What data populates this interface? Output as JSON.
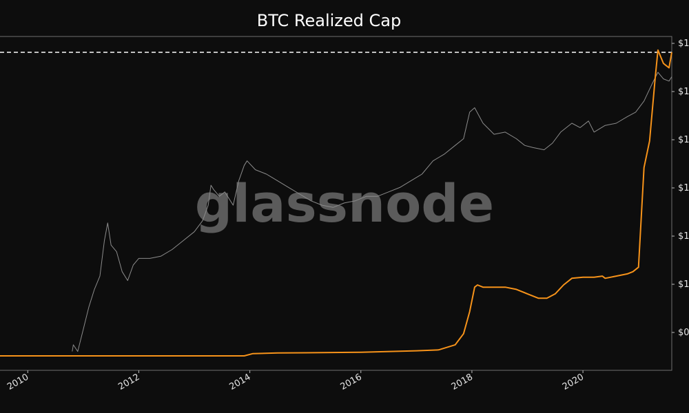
{
  "chart_data": {
    "type": "line",
    "title": "BTC Realized Cap",
    "watermark": "glassnode",
    "x_ticks": [
      "2010",
      "2012",
      "2014",
      "2016",
      "2018",
      "2020"
    ],
    "y_ticks": [
      "$1",
      "$1",
      "$1",
      "$1",
      "$1",
      "$1",
      "$0"
    ],
    "xlim": [
      2009.5,
      2021.6
    ],
    "grid": false,
    "reference_line": {
      "style": "dashed",
      "color": "#ffffff"
    },
    "series": [
      {
        "key": "price",
        "color": "#8c8c8c",
        "x": [
          2010.8,
          2010.82,
          2010.9,
          2011.0,
          2011.1,
          2011.2,
          2011.3,
          2011.38,
          2011.44,
          2011.5,
          2011.6,
          2011.7,
          2011.8,
          2011.9,
          2012.0,
          2012.2,
          2012.4,
          2012.6,
          2012.8,
          2013.0,
          2013.15,
          2013.25,
          2013.3,
          2013.35,
          2013.45,
          2013.55,
          2013.7,
          2013.8,
          2013.9,
          2013.95,
          2014.1,
          2014.3,
          2014.5,
          2014.7,
          2014.9,
          2015.1,
          2015.3,
          2015.5,
          2015.7,
          2015.9,
          2016.1,
          2016.3,
          2016.5,
          2016.7,
          2016.9,
          2017.1,
          2017.3,
          2017.5,
          2017.7,
          2017.85,
          2017.96,
          2018.05,
          2018.2,
          2018.4,
          2018.6,
          2018.8,
          2018.95,
          2019.1,
          2019.3,
          2019.45,
          2019.6,
          2019.8,
          2019.95,
          2020.1,
          2020.2,
          2020.4,
          2020.6,
          2020.8,
          2020.95,
          2021.1,
          2021.25,
          2021.35,
          2021.45,
          2021.55,
          2021.6
        ],
        "y": [
          0.02,
          0.05,
          0.02,
          0.12,
          0.22,
          0.3,
          0.36,
          0.52,
          0.6,
          0.5,
          0.47,
          0.38,
          0.34,
          0.41,
          0.44,
          0.44,
          0.45,
          0.48,
          0.52,
          0.56,
          0.61,
          0.68,
          0.77,
          0.75,
          0.72,
          0.74,
          0.68,
          0.79,
          0.86,
          0.88,
          0.84,
          0.82,
          0.79,
          0.76,
          0.73,
          0.7,
          0.68,
          0.67,
          0.69,
          0.7,
          0.72,
          0.72,
          0.74,
          0.76,
          0.79,
          0.82,
          0.88,
          0.91,
          0.95,
          0.98,
          1.1,
          1.12,
          1.05,
          1.0,
          1.01,
          0.98,
          0.95,
          0.94,
          0.93,
          0.96,
          1.01,
          1.05,
          1.03,
          1.06,
          1.01,
          1.04,
          1.05,
          1.08,
          1.1,
          1.15,
          1.23,
          1.28,
          1.25,
          1.24,
          1.26
        ]
      },
      {
        "key": "realized_cap",
        "color": "#f7931a",
        "x": [
          2009.5,
          2010.5,
          2011.0,
          2012.0,
          2013.0,
          2013.9,
          2014.05,
          2014.5,
          2015.0,
          2016.0,
          2017.0,
          2017.4,
          2017.7,
          2017.85,
          2017.96,
          2018.05,
          2018.1,
          2018.2,
          2018.4,
          2018.6,
          2018.8,
          2019.0,
          2019.2,
          2019.35,
          2019.5,
          2019.65,
          2019.8,
          2020.0,
          2020.2,
          2020.35,
          2020.4,
          2020.6,
          2020.8,
          2020.9,
          2021.0,
          2021.1,
          2021.2,
          2021.3,
          2021.35,
          2021.45,
          2021.5,
          2021.55,
          2021.6
        ],
        "y": [
          0.0,
          0.0,
          0.0,
          0.0,
          0.0,
          0.0,
          0.01,
          0.013,
          0.014,
          0.016,
          0.023,
          0.027,
          0.05,
          0.1,
          0.2,
          0.31,
          0.32,
          0.31,
          0.31,
          0.31,
          0.3,
          0.28,
          0.26,
          0.26,
          0.28,
          0.32,
          0.35,
          0.355,
          0.355,
          0.36,
          0.35,
          0.36,
          0.37,
          0.38,
          0.4,
          0.85,
          0.97,
          1.25,
          1.38,
          1.32,
          1.31,
          1.3,
          1.37
        ]
      }
    ]
  }
}
